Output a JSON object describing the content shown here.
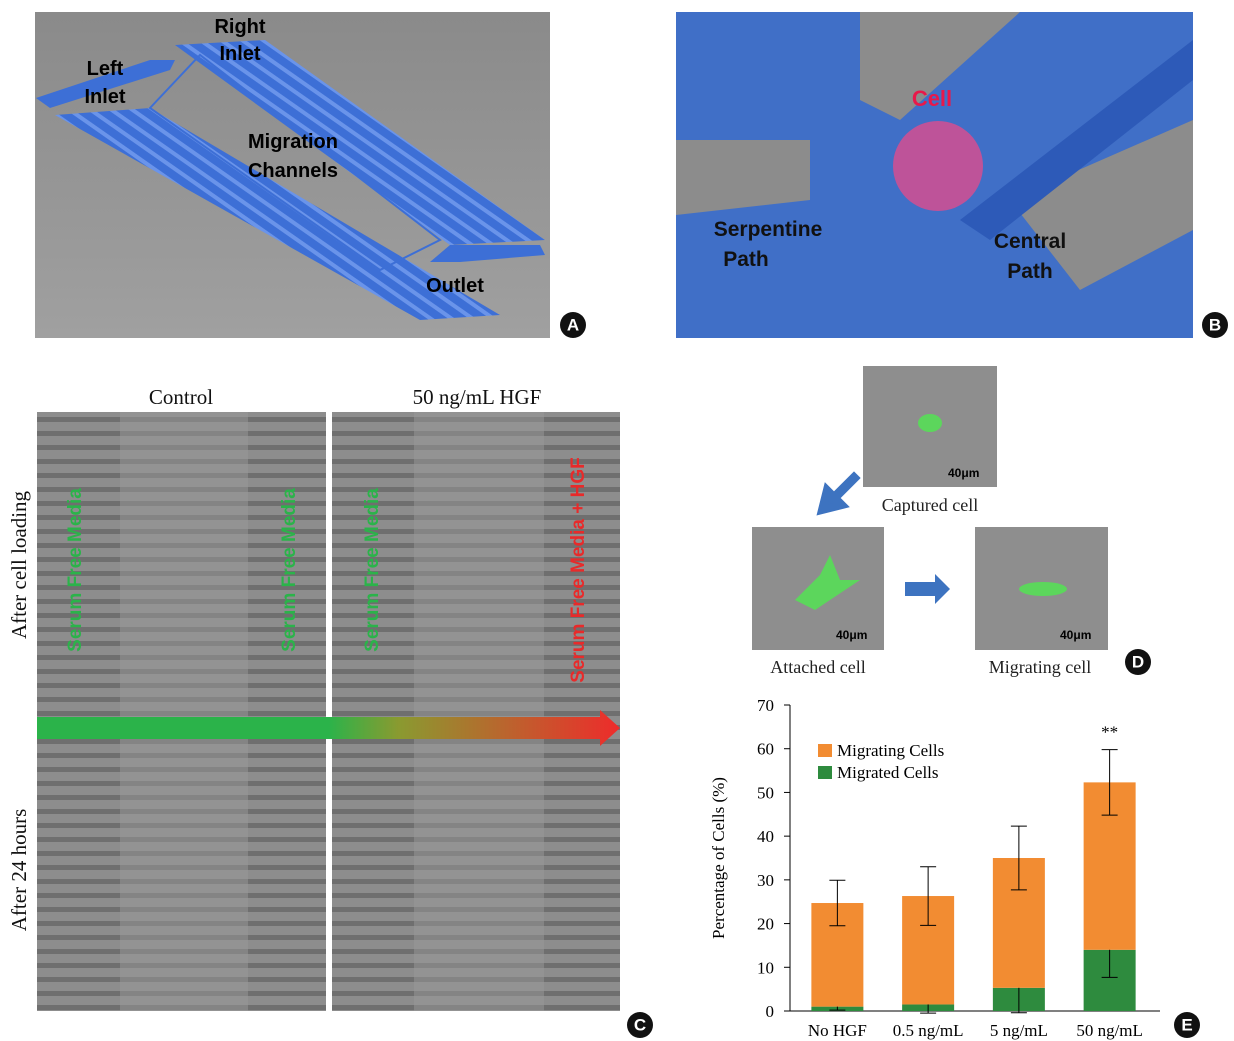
{
  "panel_a": {
    "badge": "A",
    "labels": [
      [
        "Right",
        "Inlet"
      ],
      [
        "Left",
        "Inlet"
      ],
      [
        "Migration",
        "Channels"
      ],
      [
        "Outlet"
      ]
    ]
  },
  "panel_b": {
    "badge": "B",
    "labels": [
      [
        "Cell"
      ],
      [
        "Serpentine",
        "Path"
      ],
      [
        "Central",
        "Path"
      ]
    ]
  },
  "panel_c": {
    "badge": "C",
    "columns": [
      "Control",
      "50 ng/mL HGF"
    ],
    "rows": [
      "After cell loading",
      "After 24 hours"
    ],
    "media": [
      "Serum Free Media",
      "Serum Free Media",
      "Serum Free Media",
      "Serum Free Media + HGF"
    ]
  },
  "panel_d": {
    "badge": "D",
    "images": [
      {
        "caption": "Captured cell",
        "scale": "40μm"
      },
      {
        "caption": "Attached cell",
        "scale": "40μm"
      },
      {
        "caption": "Migrating cell",
        "scale": "40μm"
      }
    ]
  },
  "chart_data": {
    "type": "stacked_bar",
    "badge": "E",
    "ylabel": "Percentage of Cells (%)",
    "categories": [
      "No HGF",
      "0.5 ng/mL",
      "5 ng/mL",
      "50 ng/mL"
    ],
    "series": [
      {
        "name": "Migrated Cells",
        "color": "#2e8b3e",
        "values": [
          1,
          1.5,
          5.3,
          14
        ],
        "errors": [
          0.8,
          2,
          5.7,
          6.3
        ]
      },
      {
        "name": "Migrating Cells",
        "color": "#f28c32",
        "values": [
          23.7,
          24.8,
          29.7,
          38.3
        ],
        "errors": [
          5.2,
          6.7,
          7.3,
          7.5
        ]
      }
    ],
    "annotation": "**",
    "ylim": [
      0,
      70
    ],
    "yticks": [
      0,
      10,
      20,
      30,
      40,
      50,
      60,
      70
    ]
  }
}
